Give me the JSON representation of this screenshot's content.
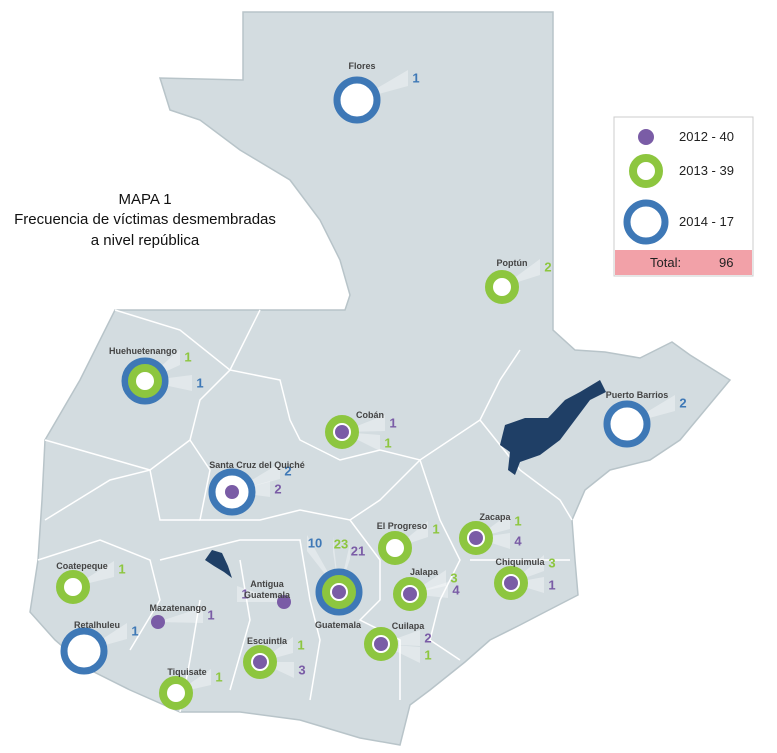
{
  "title": [
    "MAPA 1",
    "Frecuencia de víctimas desmembradas",
    "a nivel república"
  ],
  "legend": {
    "items": [
      {
        "label": "2012 - 40",
        "color": "#7a5ca6"
      },
      {
        "label": "2013 - 39",
        "color": "#8dc63f"
      },
      {
        "label": "2014 - 17",
        "color": "#3e78b6"
      }
    ],
    "total_label": "Total:",
    "total": 96
  },
  "cities": [
    {
      "name": "Flores",
      "values": [
        null,
        null,
        1
      ]
    },
    {
      "name": "Poptún",
      "values": [
        null,
        2,
        null
      ]
    },
    {
      "name": "Huehuetenango",
      "values": [
        null,
        1,
        1
      ]
    },
    {
      "name": "Cobán",
      "values": [
        1,
        1,
        null
      ]
    },
    {
      "name": "Puerto Barrios",
      "values": [
        null,
        null,
        2
      ]
    },
    {
      "name": "Santa Cruz del Quiché",
      "values": [
        2,
        null,
        2
      ]
    },
    {
      "name": "El Progreso",
      "values": [
        null,
        1,
        null
      ]
    },
    {
      "name": "Zacapa",
      "values": [
        4,
        1,
        null
      ]
    },
    {
      "name": "Coatepeque",
      "values": [
        null,
        1,
        null
      ]
    },
    {
      "name": "Guatemala",
      "values": [
        21,
        23,
        10
      ]
    },
    {
      "name": "Antigua Guatemala",
      "values": [
        1,
        null,
        null
      ]
    },
    {
      "name": "Jalapa",
      "values": [
        4,
        3,
        null
      ]
    },
    {
      "name": "Chiquimula",
      "values": [
        1,
        3,
        null
      ]
    },
    {
      "name": "Mazatenango",
      "values": [
        1,
        null,
        null
      ]
    },
    {
      "name": "Retalhuleu",
      "values": [
        null,
        null,
        1
      ]
    },
    {
      "name": "Escuintla",
      "values": [
        3,
        1,
        null
      ]
    },
    {
      "name": "Cuilapa",
      "values": [
        2,
        1,
        null
      ]
    },
    {
      "name": "Tiquisate",
      "values": [
        null,
        1,
        null
      ]
    }
  ]
}
